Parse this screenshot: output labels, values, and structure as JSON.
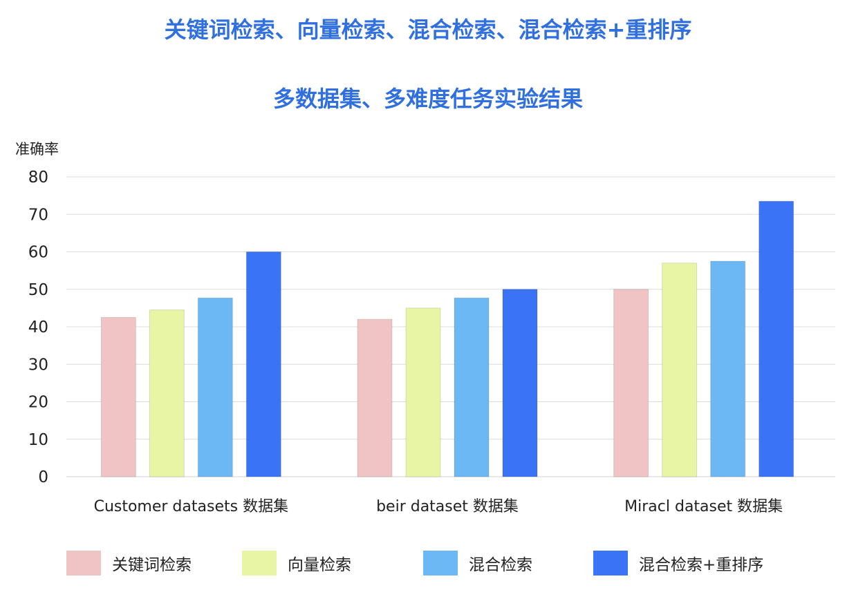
{
  "chart_data": {
    "type": "bar",
    "title": "关键词检索、向量检索、混合检索、混合检索+重排序",
    "subtitle": "多数据集、多难度任务实验结果",
    "ylabel": "准确率",
    "xlabel": "",
    "ylim": [
      0,
      80
    ],
    "yticks": [
      0,
      10,
      20,
      30,
      40,
      50,
      60,
      70,
      80
    ],
    "grid": true,
    "legend_position": "bottom",
    "categories": [
      "Customer datasets 数据集",
      "beir dataset 数据集",
      "Miracl dataset 数据集"
    ],
    "series": [
      {
        "name": "关键词检索",
        "color": "#f0c4c4",
        "values": [
          42.5,
          42,
          50
        ]
      },
      {
        "name": "向量检索",
        "color": "#e8f5a4",
        "values": [
          44.5,
          45,
          57
        ]
      },
      {
        "name": "混合检索",
        "color": "#6cb8f5",
        "values": [
          47.7,
          47.7,
          57.5
        ]
      },
      {
        "name": "混合检索+重排序",
        "color": "#3b73f7",
        "values": [
          60,
          50,
          73.5
        ]
      }
    ]
  }
}
